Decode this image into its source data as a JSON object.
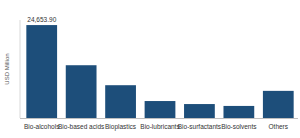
{
  "chart_data": {
    "type": "bar",
    "y_label": "USD Million",
    "categories": [
      "Bio-alcohols",
      "Bio-based acids",
      "Bioplastics",
      "Bio-lubricants",
      "Bio-surfactants",
      "Bio-solvents",
      "Others"
    ],
    "values": [
      24653.9,
      14000,
      8700,
      4500,
      3700,
      3200,
      7200
    ],
    "value_labels": [
      "24,653.90",
      null,
      null,
      null,
      null,
      null,
      null
    ],
    "data_labels": true,
    "color": "#1d4e7a",
    "ylim": [
      0,
      26000
    ],
    "grid": false,
    "tick_labels": "x"
  }
}
